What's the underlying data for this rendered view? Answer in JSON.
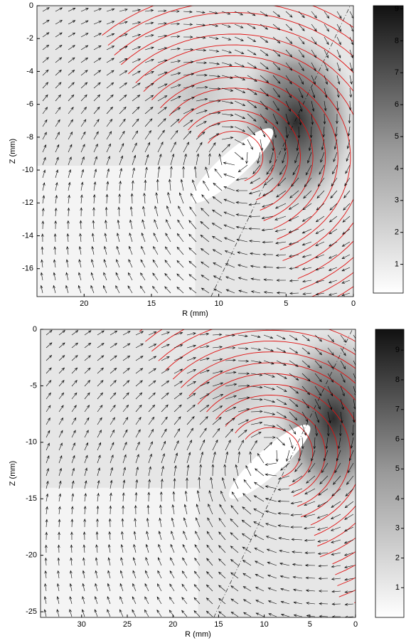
{
  "chart_data": [
    {
      "type": "quiver",
      "xlabel": "R (mm)",
      "ylabel": "Z (mm)",
      "xlim": [
        23.5,
        0
      ],
      "ylim": [
        -17.7,
        0
      ],
      "xticks": [
        20,
        15,
        10,
        5,
        0
      ],
      "yticks": [
        0,
        -2,
        -4,
        -6,
        -8,
        -10,
        -12,
        -14,
        -16
      ],
      "colorbar": {
        "lim": [
          0.1,
          9.1
        ],
        "ticks": [
          1,
          2,
          3,
          4,
          5,
          6,
          7,
          8,
          9
        ]
      }
    },
    {
      "type": "quiver",
      "xlabel": "R (mm)",
      "ylabel": "Z (mm)",
      "xlim": [
        34.5,
        0
      ],
      "ylim": [
        -25.5,
        0
      ],
      "xticks": [
        30,
        25,
        20,
        15,
        10,
        5,
        0
      ],
      "yticks": [
        0,
        -5,
        -10,
        -15,
        -20,
        -25
      ],
      "colorbar": {
        "lim": [
          0,
          9.7
        ],
        "ticks": [
          1,
          2,
          3,
          4,
          5,
          6,
          7,
          8,
          9
        ]
      }
    }
  ]
}
